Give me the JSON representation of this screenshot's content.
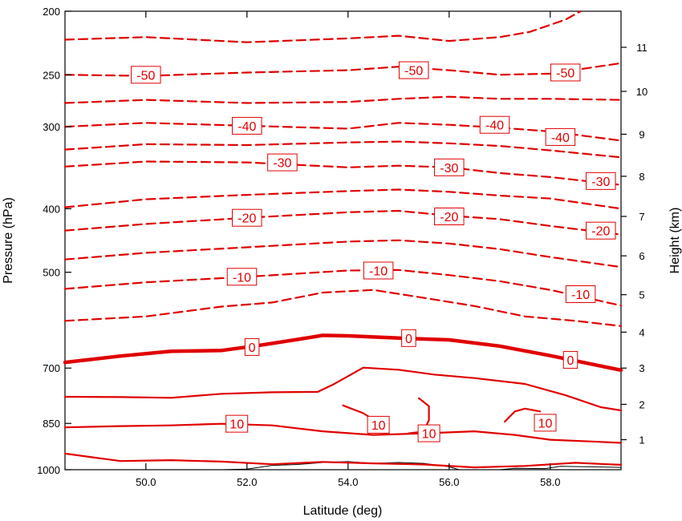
{
  "chart_data": {
    "type": "line",
    "title": "",
    "xlabel": "Latitude (deg)",
    "ylabel": "Pressure (hPa)",
    "y2label": "Height (km)",
    "xlim": [
      48.4,
      59.4
    ],
    "x_ticks": [
      {
        "value": 50,
        "label": "50.0"
      },
      {
        "value": 52,
        "label": "52.0"
      },
      {
        "value": 54,
        "label": "54.0"
      },
      {
        "value": 56,
        "label": "56.0"
      },
      {
        "value": 58,
        "label": "58.0"
      }
    ],
    "ylim_pressure": [
      1000,
      200
    ],
    "y_scale": "log",
    "y_ticks": [
      {
        "value": 200,
        "label": "200"
      },
      {
        "value": 250,
        "label": "250"
      },
      {
        "value": 300,
        "label": "300"
      },
      {
        "value": 400,
        "label": "400"
      },
      {
        "value": 500,
        "label": "500"
      },
      {
        "value": 700,
        "label": "700"
      },
      {
        "value": 850,
        "label": "850"
      },
      {
        "value": 1000,
        "label": "1000"
      }
    ],
    "y2_ticks": [
      {
        "pressure": 900,
        "label": "1"
      },
      {
        "pressure": 795,
        "label": "2"
      },
      {
        "pressure": 700,
        "label": "3"
      },
      {
        "pressure": 617,
        "label": "4"
      },
      {
        "pressure": 541,
        "label": "5"
      },
      {
        "pressure": 472,
        "label": "6"
      },
      {
        "pressure": 411,
        "label": "7"
      },
      {
        "pressure": 357,
        "label": "8"
      },
      {
        "pressure": 308,
        "label": "9"
      },
      {
        "pressure": 265,
        "label": "10"
      },
      {
        "pressure": 227,
        "label": "11"
      }
    ],
    "grid": false,
    "legend": "none",
    "colors": {
      "contour": "#e00000",
      "terrain": "#000000"
    },
    "contours": [
      {
        "level": -50,
        "style": "dashed",
        "points": [
          [
            48.4,
            250
          ],
          [
            50,
            251
          ],
          [
            52,
            248
          ],
          [
            54,
            246
          ],
          [
            55,
            243
          ],
          [
            56,
            246
          ],
          [
            57,
            250
          ],
          [
            58,
            249
          ],
          [
            59.4,
            240
          ]
        ]
      },
      {
        "level": -45,
        "style": "dashed",
        "points": [
          [
            48.4,
            221
          ],
          [
            50,
            219
          ],
          [
            52,
            223
          ],
          [
            54,
            220
          ],
          [
            55,
            218
          ],
          [
            56,
            222
          ],
          [
            57,
            219
          ],
          [
            57.6,
            215
          ],
          [
            58.3,
            206
          ],
          [
            58.6,
            200
          ]
        ]
      },
      {
        "level": -40,
        "style": "dashed",
        "points": [
          [
            48.4,
            300
          ],
          [
            50,
            296
          ],
          [
            52,
            299
          ],
          [
            54,
            302
          ],
          [
            55,
            296
          ],
          [
            56,
            298
          ],
          [
            57,
            301
          ],
          [
            58,
            305
          ],
          [
            59.4,
            315
          ]
        ]
      },
      {
        "level": -35,
        "style": "dashed",
        "points": [
          [
            48.4,
            276
          ],
          [
            50,
            273
          ],
          [
            52,
            276
          ],
          [
            54,
            275
          ],
          [
            55,
            272
          ],
          [
            56,
            270
          ],
          [
            57,
            272
          ],
          [
            58,
            272
          ],
          [
            59.4,
            273
          ]
        ]
      },
      {
        "level": -30,
        "style": "dashed",
        "points": [
          [
            48.4,
            345
          ],
          [
            50,
            339
          ],
          [
            52,
            340
          ],
          [
            54,
            346
          ],
          [
            55,
            344
          ],
          [
            56,
            346
          ],
          [
            57,
            353
          ],
          [
            58,
            358
          ],
          [
            59.4,
            368
          ]
        ]
      },
      {
        "level": -25,
        "style": "dashed",
        "points": [
          [
            48.4,
            325
          ],
          [
            50,
            319
          ],
          [
            52,
            320
          ],
          [
            54,
            317
          ],
          [
            55,
            316
          ],
          [
            56,
            318
          ],
          [
            57,
            321
          ],
          [
            58,
            326
          ],
          [
            59.4,
            334
          ]
        ]
      },
      {
        "level": -20,
        "style": "dashed",
        "points": [
          [
            48.4,
            432
          ],
          [
            50,
            422
          ],
          [
            52,
            413
          ],
          [
            54,
            405
          ],
          [
            55,
            403
          ],
          [
            56,
            410
          ],
          [
            57,
            415
          ],
          [
            58,
            425
          ],
          [
            59.4,
            438
          ]
        ]
      },
      {
        "level": -15,
        "style": "dashed",
        "points": [
          [
            48.4,
            398
          ],
          [
            50,
            387
          ],
          [
            52,
            381
          ],
          [
            54,
            376
          ],
          [
            55,
            374
          ],
          [
            56,
            377
          ],
          [
            57,
            382
          ],
          [
            58,
            386
          ],
          [
            59.4,
            400
          ]
        ]
      },
      {
        "level": -10,
        "style": "dashed",
        "points": [
          [
            48.4,
            530
          ],
          [
            50,
            518
          ],
          [
            52,
            508
          ],
          [
            54,
            497
          ],
          [
            55,
            496
          ],
          [
            56,
            505
          ],
          [
            57,
            516
          ],
          [
            58,
            532
          ],
          [
            59.4,
            562
          ]
        ]
      },
      {
        "level": -5,
        "style": "dashed",
        "points": [
          [
            48.4,
            478
          ],
          [
            50,
            467
          ],
          [
            52,
            458
          ],
          [
            54,
            449
          ],
          [
            55,
            447
          ],
          [
            56,
            452
          ],
          [
            57,
            461
          ],
          [
            58,
            474
          ],
          [
            59.4,
            491
          ]
        ]
      },
      {
        "level": -3,
        "style": "dashed",
        "points": [
          [
            48.4,
            593
          ],
          [
            50,
            584
          ],
          [
            51.5,
            564
          ],
          [
            52.5,
            556
          ],
          [
            53.5,
            537
          ],
          [
            54.5,
            532
          ],
          [
            55.5,
            547
          ],
          [
            56.5,
            563
          ],
          [
            57.5,
            584
          ],
          [
            58.5,
            593
          ],
          [
            59.4,
            604
          ]
        ]
      },
      {
        "level": 0,
        "style": "bold",
        "points": [
          [
            48.4,
            686
          ],
          [
            49.5,
            671
          ],
          [
            50.5,
            660
          ],
          [
            51.5,
            658
          ],
          [
            52.2,
            647
          ],
          [
            53,
            633
          ],
          [
            53.5,
            624
          ],
          [
            54,
            625
          ],
          [
            55,
            630
          ],
          [
            56,
            634
          ],
          [
            57,
            648
          ],
          [
            58,
            670
          ],
          [
            58.8,
            690
          ],
          [
            59.4,
            705
          ]
        ]
      },
      {
        "level": 5,
        "style": "solid",
        "points": [
          [
            48.4,
            774
          ],
          [
            49.5,
            775
          ],
          [
            50.5,
            777
          ],
          [
            51.5,
            766
          ],
          [
            52.5,
            762
          ],
          [
            53.4,
            761
          ],
          [
            53.7,
            742
          ],
          [
            54.3,
            699
          ],
          [
            55,
            704
          ],
          [
            55.7,
            716
          ],
          [
            56.5,
            725
          ],
          [
            57.5,
            740
          ],
          [
            58.3,
            770
          ],
          [
            59,
            803
          ],
          [
            59.4,
            812
          ]
        ]
      },
      {
        "level": 10,
        "style": "solid",
        "points": [
          [
            48.4,
            862
          ],
          [
            49.5,
            858
          ],
          [
            50.5,
            856
          ],
          [
            51.5,
            851
          ],
          [
            52.5,
            856
          ],
          [
            53.5,
            874
          ],
          [
            54.5,
            885
          ],
          [
            55.5,
            880
          ],
          [
            56.5,
            874
          ],
          [
            57.3,
            885
          ],
          [
            58,
            900
          ],
          [
            59,
            907
          ],
          [
            59.4,
            910
          ]
        ]
      },
      {
        "level": 15,
        "style": "solid",
        "points": [
          [
            48.4,
            945
          ],
          [
            49.5,
            970
          ],
          [
            50.5,
            967
          ],
          [
            51.5,
            972
          ],
          [
            52.5,
            981
          ],
          [
            53.5,
            973
          ],
          [
            54.5,
            978
          ],
          [
            55.5,
            982
          ],
          [
            56.5,
            992
          ],
          [
            57.5,
            987
          ],
          [
            58.5,
            976
          ],
          [
            59.4,
            983
          ]
        ]
      }
    ],
    "contour_labels": [
      {
        "text": "-50",
        "x": 50.0,
        "p": 250
      },
      {
        "text": "-50",
        "x": 55.3,
        "p": 246
      },
      {
        "text": "-50",
        "x": 58.3,
        "p": 248
      },
      {
        "text": "-40",
        "x": 52.0,
        "p": 299
      },
      {
        "text": "-40",
        "x": 56.9,
        "p": 298
      },
      {
        "text": "-40",
        "x": 58.2,
        "p": 311
      },
      {
        "text": "-30",
        "x": 52.7,
        "p": 340
      },
      {
        "text": "-30",
        "x": 56.0,
        "p": 346
      },
      {
        "text": "-30",
        "x": 59.0,
        "p": 363
      },
      {
        "text": "-20",
        "x": 52.0,
        "p": 413
      },
      {
        "text": "-20",
        "x": 56.0,
        "p": 411
      },
      {
        "text": "-20",
        "x": 59.0,
        "p": 432
      },
      {
        "text": "-10",
        "x": 51.9,
        "p": 508
      },
      {
        "text": "-10",
        "x": 54.6,
        "p": 497
      },
      {
        "text": "-10",
        "x": 58.6,
        "p": 540
      },
      {
        "text": "0",
        "x": 52.1,
        "p": 650
      },
      {
        "text": "0",
        "x": 55.2,
        "p": 630
      },
      {
        "text": "0",
        "x": 58.4,
        "p": 680
      },
      {
        "text": "10",
        "x": 51.8,
        "p": 851
      },
      {
        "text": "10",
        "x": 54.6,
        "p": 854
      },
      {
        "text": "10",
        "x": 55.6,
        "p": 880
      },
      {
        "text": "10",
        "x": 57.9,
        "p": 848
      }
    ],
    "extra_contours": [
      {
        "level": 10,
        "style": "solid",
        "points": [
          [
            53.9,
            798
          ],
          [
            54.3,
            820
          ],
          [
            54.6,
            848
          ],
          [
            54.8,
            880
          ]
        ]
      },
      {
        "level": 10,
        "style": "solid",
        "points": [
          [
            55.4,
            778
          ],
          [
            55.6,
            800
          ],
          [
            55.6,
            840
          ],
          [
            55.5,
            875
          ],
          [
            55.2,
            880
          ]
        ]
      },
      {
        "level": 10,
        "style": "solid",
        "points": [
          [
            57.1,
            845
          ],
          [
            57.3,
            815
          ],
          [
            57.5,
            807
          ],
          [
            57.8,
            815
          ]
        ]
      }
    ],
    "terrain": [
      [
        51.5,
        1000
      ],
      [
        52.0,
        998
      ],
      [
        52.5,
        985
      ],
      [
        53.0,
        982
      ],
      [
        53.5,
        975
      ],
      [
        54.0,
        972
      ],
      [
        54.5,
        978
      ],
      [
        55.0,
        975
      ],
      [
        55.5,
        978
      ],
      [
        56.0,
        990
      ],
      [
        56.2,
        1000
      ],
      [
        57.0,
        1000
      ],
      [
        57.3,
        995
      ],
      [
        57.9,
        996
      ],
      [
        58.2,
        988
      ],
      [
        59.4,
        992
      ]
    ]
  }
}
